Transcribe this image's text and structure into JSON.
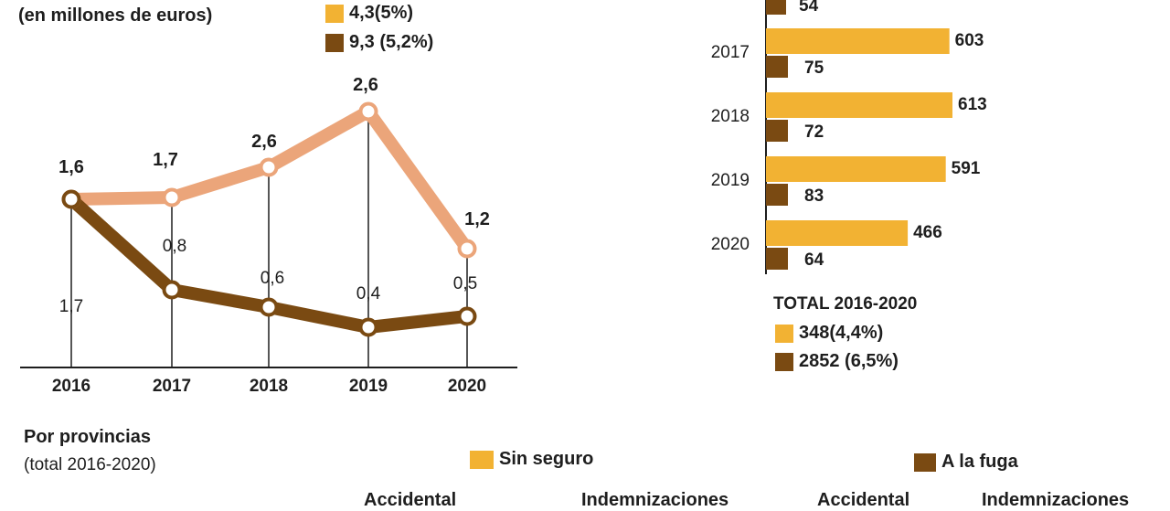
{
  "header": {
    "subtitle": "(en millones de euros)",
    "legend_top": [
      {
        "label": "4,3(5%)",
        "color": "#f2b233"
      },
      {
        "label": "9,3 (5,2%)",
        "color": "#7a4a12"
      }
    ]
  },
  "chart_data": [
    {
      "type": "line",
      "title": "",
      "x": [
        "2016",
        "2017",
        "2018",
        "2019",
        "2020"
      ],
      "ylim": [
        0,
        3
      ],
      "series": [
        {
          "values": [
            1.6,
            1.7,
            2.6,
            2.6,
            1.2
          ],
          "labels": [
            "1,6",
            "1,7",
            "2,6",
            "2,6",
            "1,2"
          ],
          "color": "#eba57a"
        },
        {
          "values": [
            1.7,
            0.8,
            0.6,
            0.4,
            0.5
          ],
          "labels": [
            "1,7",
            "0,8",
            "0,6",
            "0,4",
            "0,5"
          ],
          "color": "#7a4a12"
        }
      ]
    },
    {
      "type": "bar",
      "orientation": "horizontal",
      "categories": [
        "2017",
        "2018",
        "2019",
        "2020"
      ],
      "xlim": [
        0,
        700
      ],
      "partial_top_value": {
        "value": 54,
        "label": "54"
      },
      "series": [
        {
          "values": [
            603,
            613,
            591,
            466
          ],
          "labels": [
            "603",
            "613",
            "591",
            "466"
          ],
          "color": "#f2b233"
        },
        {
          "values": [
            75,
            72,
            83,
            64
          ],
          "labels": [
            "75",
            "72",
            "83",
            "64"
          ],
          "color": "#7a4a12"
        }
      ]
    }
  ],
  "totals": {
    "title": "TOTAL 2016-2020",
    "items": [
      {
        "label": "348(4,4%)",
        "color": "#f2b233"
      },
      {
        "label": "2852 (6,5%)",
        "color": "#7a4a12"
      }
    ]
  },
  "provinces": {
    "title": "Por provincias",
    "subtitle": "(total 2016-2020)",
    "legend": [
      {
        "label": "Sin seguro",
        "color": "#f2b233"
      },
      {
        "label": "A la fuga",
        "color": "#7a4a12"
      }
    ],
    "cut_labels": [
      "Accidental",
      "Indemnizaciones",
      "Accidental",
      "Indemnizaciones"
    ]
  }
}
